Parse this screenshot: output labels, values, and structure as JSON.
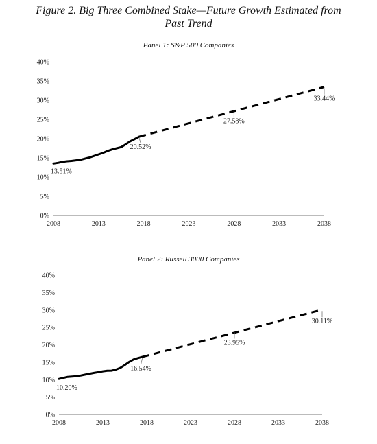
{
  "figure": {
    "title_line1": "Figure 2. Big Three Combined Stake—Future Growth Estimated from",
    "title_line2": "Past Trend"
  },
  "chart_data": [
    {
      "type": "line",
      "title": "Panel 1: S&P 500 Companies",
      "xlabel": "",
      "ylabel": "",
      "x_ticks": [
        2008,
        2013,
        2018,
        2023,
        2028,
        2033,
        2038
      ],
      "xlim": [
        2008,
        2038
      ],
      "y_ticks": [
        "0%",
        "5%",
        "10%",
        "15%",
        "20%",
        "25%",
        "30%",
        "35%",
        "40%"
      ],
      "ylim": [
        0,
        40
      ],
      "grid": false,
      "series": [
        {
          "style": "solid",
          "x": [
            2008,
            2008.5,
            2009,
            2009.5,
            2010,
            2010.5,
            2011,
            2011.5,
            2012,
            2012.5,
            2013,
            2013.5,
            2014,
            2014.5,
            2015,
            2015.5,
            2016,
            2016.5,
            2017,
            2017.5
          ],
          "y": [
            13.51,
            13.7,
            13.95,
            14.1,
            14.2,
            14.35,
            14.5,
            14.8,
            15.1,
            15.5,
            15.9,
            16.3,
            16.8,
            17.2,
            17.5,
            17.8,
            18.5,
            19.3,
            19.9,
            20.52
          ]
        },
        {
          "style": "dashed",
          "x": [
            2017.5,
            2038
          ],
          "y": [
            20.52,
            33.44
          ]
        }
      ],
      "annotations": [
        {
          "text": "13.51%",
          "x": 2008,
          "y": 13.51
        },
        {
          "text": "20.52%",
          "x": 2017.5,
          "y": 20.52
        },
        {
          "text": "27.58%",
          "x": 2028,
          "y": 27.58
        },
        {
          "text": "33.44%",
          "x": 2038,
          "y": 33.44
        }
      ]
    },
    {
      "type": "line",
      "title": "Panel 2: Russell 3000 Companies",
      "xlabel": "",
      "ylabel": "",
      "x_ticks": [
        2008,
        2013,
        2018,
        2023,
        2028,
        2033,
        2038
      ],
      "xlim": [
        2008,
        2038
      ],
      "y_ticks": [
        "0%",
        "5%",
        "10%",
        "15%",
        "20%",
        "25%",
        "30%",
        "35%",
        "40%"
      ],
      "ylim": [
        0,
        40
      ],
      "grid": false,
      "series": [
        {
          "style": "solid",
          "x": [
            2008,
            2008.5,
            2009,
            2009.5,
            2010,
            2010.5,
            2011,
            2011.5,
            2012,
            2012.5,
            2013,
            2013.5,
            2014,
            2014.5,
            2015,
            2015.5,
            2016,
            2016.5,
            2017,
            2017.5
          ],
          "y": [
            10.2,
            10.5,
            10.8,
            10.9,
            11.0,
            11.2,
            11.45,
            11.7,
            11.95,
            12.15,
            12.4,
            12.55,
            12.6,
            12.9,
            13.4,
            14.2,
            15.1,
            15.8,
            16.2,
            16.54
          ]
        },
        {
          "style": "dashed",
          "x": [
            2017.5,
            2038
          ],
          "y": [
            16.54,
            30.11
          ]
        }
      ],
      "annotations": [
        {
          "text": "10.20%",
          "x": 2008,
          "y": 10.2
        },
        {
          "text": "16.54%",
          "x": 2017.5,
          "y": 16.54
        },
        {
          "text": "23.95%",
          "x": 2028,
          "y": 23.95
        },
        {
          "text": "30.11%",
          "x": 2038,
          "y": 30.11
        }
      ]
    }
  ]
}
